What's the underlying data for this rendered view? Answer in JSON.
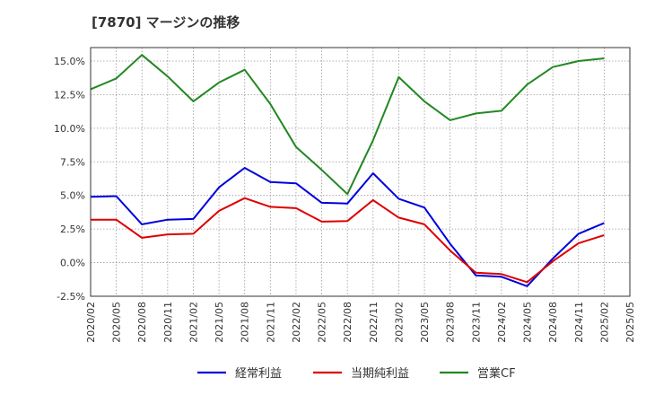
{
  "chart_data": {
    "type": "line",
    "title": "[7870]  マージンの推移",
    "xlabel": "",
    "ylabel": "",
    "ylim": [
      -2.5,
      16.0
    ],
    "y_ticks": [
      -2.5,
      0.0,
      2.5,
      5.0,
      7.5,
      10.0,
      12.5,
      15.0
    ],
    "y_tick_labels": [
      "-2.5%",
      "0.0%",
      "2.5%",
      "5.0%",
      "7.5%",
      "10.0%",
      "12.5%",
      "15.0%"
    ],
    "x_tick_labels": [
      "2020/02",
      "2020/05",
      "2020/08",
      "2020/11",
      "2021/02",
      "2021/05",
      "2021/08",
      "2021/11",
      "2022/02",
      "2022/05",
      "2022/08",
      "2022/11",
      "2023/02",
      "2023/05",
      "2023/08",
      "2023/11",
      "2024/02",
      "2024/05",
      "2024/08",
      "2024/11",
      "2025/02",
      "2025/05"
    ],
    "grid": true,
    "legend_position": "bottom",
    "series": [
      {
        "name": "経常利益",
        "color": "#0000dd",
        "values": [
          4.9,
          4.95,
          2.85,
          3.2,
          3.25,
          5.6,
          7.05,
          6.0,
          5.9,
          4.45,
          4.4,
          6.65,
          4.75,
          4.1,
          1.4,
          -0.95,
          -1.05,
          -1.75,
          0.3,
          2.15,
          2.95
        ]
      },
      {
        "name": "当期純利益",
        "color": "#dd0000",
        "values": [
          3.2,
          3.2,
          1.85,
          2.1,
          2.15,
          3.85,
          4.8,
          4.15,
          4.05,
          3.05,
          3.1,
          4.65,
          3.35,
          2.85,
          0.9,
          -0.75,
          -0.85,
          -1.45,
          0.1,
          1.45,
          2.05
        ]
      },
      {
        "name": "営業CF",
        "color": "#228822",
        "values": [
          12.9,
          13.7,
          15.45,
          13.85,
          12.0,
          13.4,
          14.35,
          11.8,
          8.6,
          6.9,
          5.1,
          9.1,
          13.8,
          12.0,
          10.6,
          11.1,
          11.3,
          13.25,
          14.55,
          15.0,
          15.2
        ]
      }
    ]
  }
}
